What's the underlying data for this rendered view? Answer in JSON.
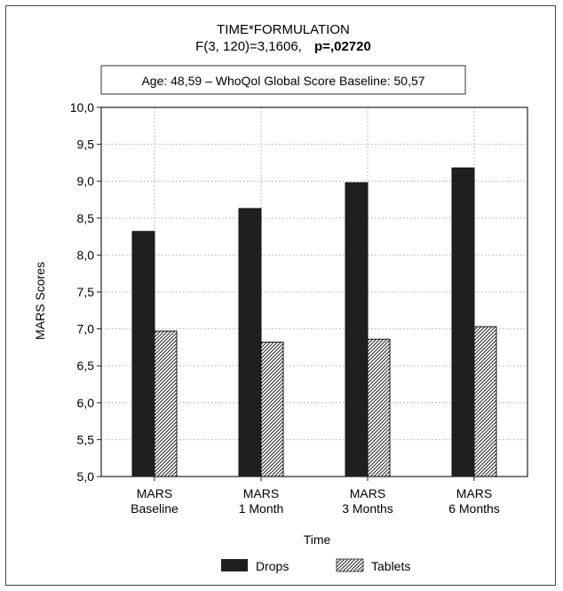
{
  "chart_data": {
    "type": "bar",
    "title": "TIME*FORMULATION",
    "subtitle": "F(3, 120)=3,1606,",
    "p_value": "p=,02720",
    "annotation": "Age: 48,59 – WhoQol Global Score Baseline: 50,57",
    "xlabel": "Time",
    "ylabel": "MARS Scores",
    "ylim": [
      5.0,
      10.0
    ],
    "yticks": [
      "5,0",
      "5,5",
      "6,0",
      "6,5",
      "7,0",
      "7,5",
      "8,0",
      "8,5",
      "9,0",
      "9,5",
      "10,0"
    ],
    "grid": true,
    "categories": [
      [
        "MARS",
        "Baseline"
      ],
      [
        "MARS",
        "1 Month"
      ],
      [
        "MARS",
        "3 Months"
      ],
      [
        "MARS",
        "6 Months"
      ]
    ],
    "series": [
      {
        "name": "Drops",
        "values": [
          8.32,
          8.63,
          8.98,
          9.18
        ],
        "color": "#1f1f1f",
        "pattern": "solid"
      },
      {
        "name": "Tablets",
        "values": [
          6.97,
          6.82,
          6.86,
          7.03
        ],
        "color": "#ffffff",
        "pattern": "diagonal-hatch"
      }
    ],
    "legend_position": "bottom"
  }
}
